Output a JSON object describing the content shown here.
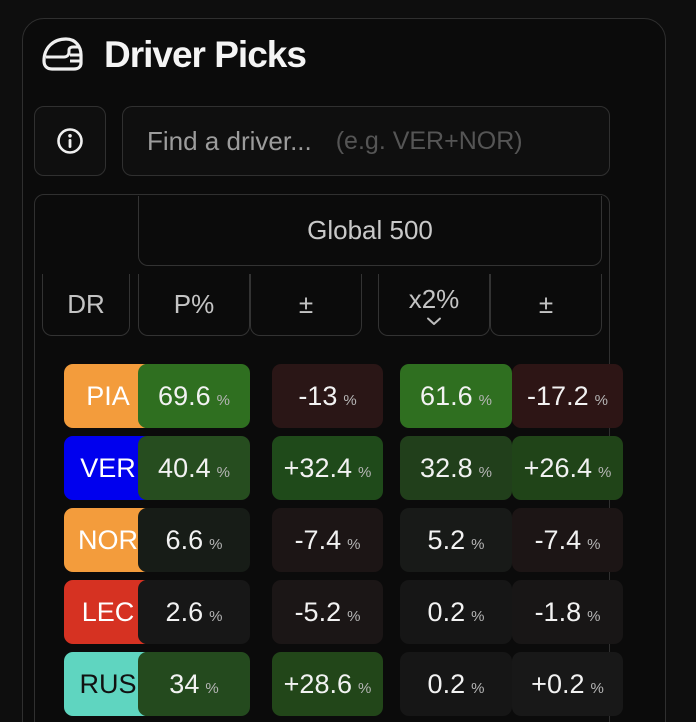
{
  "header": {
    "title": "Driver Picks",
    "icon": "helmet-icon"
  },
  "info_button": {
    "icon": "info-icon"
  },
  "search": {
    "placeholder": "Find a driver...",
    "hint": "(e.g. VER+NOR)"
  },
  "table": {
    "group_title": "Global 500",
    "columns": [
      {
        "label": "DR"
      },
      {
        "label": "P%"
      },
      {
        "label": "±"
      },
      {
        "label": "x2%",
        "sorted": "descending"
      },
      {
        "label": "±"
      }
    ],
    "pct_symbol": "%",
    "rows": [
      {
        "driver": "PIA",
        "driver_color": "#f39c3c",
        "driver_text": "#ffffff",
        "p": "69.6",
        "p_delta": "-13",
        "x2": "61.6",
        "x2_delta": "-17.2"
      },
      {
        "driver": "VER",
        "driver_color": "#0000ee",
        "driver_text": "#ffffff",
        "p": "40.4",
        "p_delta": "+32.4",
        "x2": "32.8",
        "x2_delta": "+26.4"
      },
      {
        "driver": "NOR",
        "driver_color": "#f39c3c",
        "driver_text": "#ffffff",
        "p": "6.6",
        "p_delta": "-7.4",
        "x2": "5.2",
        "x2_delta": "-7.4"
      },
      {
        "driver": "LEC",
        "driver_color": "#d63222",
        "driver_text": "#ffffff",
        "p": "2.6",
        "p_delta": "-5.2",
        "x2": "0.2",
        "x2_delta": "-1.8"
      },
      {
        "driver": "RUS",
        "driver_color": "#5fd5c0",
        "driver_text": "#111111",
        "p": "34",
        "p_delta": "+28.6",
        "x2": "0.2",
        "x2_delta": "+0.2"
      }
    ],
    "cell_colors": [
      [
        "#2f6f20",
        "#2a1616",
        "#2f6f20",
        "#2d1515"
      ],
      [
        "#264d1f",
        "#1f4a1a",
        "#213f1b",
        "#204418"
      ],
      [
        "#171c17",
        "#1c1515",
        "#181a18",
        "#1c1515"
      ],
      [
        "#171717",
        "#1b1616",
        "#161616",
        "#181616"
      ],
      [
        "#244a1e",
        "#224619",
        "#161616",
        "#181818"
      ]
    ]
  }
}
